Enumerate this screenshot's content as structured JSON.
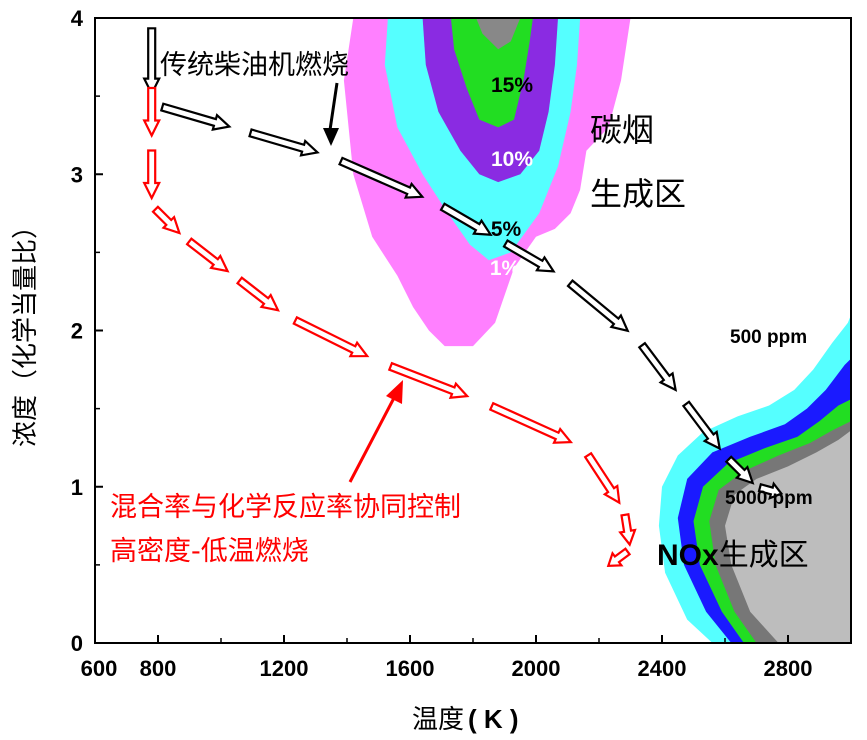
{
  "chart_data": {
    "type": "contour",
    "xlabel": "温度",
    "xlabel_unit": "( K )",
    "ylabel": "浓度（化学当量比）",
    "xlim": [
      600,
      3000
    ],
    "ylim": [
      0,
      4
    ],
    "x_ticks": [
      600,
      800,
      1200,
      1600,
      2000,
      2400,
      2800
    ],
    "y_ticks": [
      0,
      1,
      2,
      3,
      4
    ],
    "regions": {
      "soot": {
        "title_line1": "碳烟",
        "title_line2": "生成区",
        "levels": [
          {
            "label": "1%",
            "color": "#ff80ff",
            "polygon": [
              [
                1420,
                4
              ],
              [
                1390,
                3.6
              ],
              [
                1420,
                3.0
              ],
              [
                1480,
                2.6
              ],
              [
                1560,
                2.35
              ],
              [
                1610,
                2.15
              ],
              [
                1660,
                2.0
              ],
              [
                1710,
                1.9
              ],
              [
                1800,
                1.9
              ],
              [
                1870,
                2.05
              ],
              [
                1930,
                2.4
              ],
              [
                2000,
                2.6
              ],
              [
                2060,
                2.65
              ],
              [
                2110,
                2.75
              ],
              [
                2140,
                2.9
              ],
              [
                2160,
                3.15
              ],
              [
                2230,
                3.3
              ],
              [
                2270,
                3.6
              ],
              [
                2300,
                4
              ]
            ]
          },
          {
            "label": "5%",
            "color": "#55ffff",
            "polygon": [
              [
                1530,
                4
              ],
              [
                1520,
                3.7
              ],
              [
                1560,
                3.3
              ],
              [
                1640,
                3.0
              ],
              [
                1720,
                2.75
              ],
              [
                1790,
                2.55
              ],
              [
                1850,
                2.45
              ],
              [
                1920,
                2.5
              ],
              [
                2010,
                2.75
              ],
              [
                2070,
                3.05
              ],
              [
                2110,
                3.4
              ],
              [
                2130,
                3.7
              ],
              [
                2140,
                4
              ]
            ]
          },
          {
            "label": "10%",
            "color": "#8a2be2",
            "polygon": [
              [
                1640,
                4
              ],
              [
                1650,
                3.7
              ],
              [
                1690,
                3.4
              ],
              [
                1760,
                3.15
              ],
              [
                1820,
                3.0
              ],
              [
                1880,
                2.95
              ],
              [
                1950,
                3.0
              ],
              [
                2010,
                3.15
              ],
              [
                2040,
                3.4
              ],
              [
                2060,
                3.7
              ],
              [
                2070,
                4
              ]
            ]
          },
          {
            "label": "15%",
            "color": "#22dd22",
            "polygon": [
              [
                1730,
                4
              ],
              [
                1740,
                3.8
              ],
              [
                1780,
                3.55
              ],
              [
                1820,
                3.35
              ],
              [
                1880,
                3.3
              ],
              [
                1930,
                3.35
              ],
              [
                1960,
                3.6
              ],
              [
                1980,
                3.85
              ],
              [
                1990,
                4
              ]
            ]
          },
          {
            "label": "",
            "color": "#888888",
            "polygon": [
              [
                1810,
                4
              ],
              [
                1830,
                3.9
              ],
              [
                1880,
                3.8
              ],
              [
                1920,
                3.85
              ],
              [
                1940,
                3.95
              ],
              [
                1950,
                4
              ]
            ]
          }
        ]
      },
      "nox": {
        "title": "NOx生成区",
        "title_en": "NOx",
        "title_cn": "生成区",
        "label_low": "500 ppm",
        "label_high": "5000 ppm",
        "levels": [
          {
            "color": "#55ffff",
            "polygon": [
              [
                2560,
                0
              ],
              [
                2480,
                0.15
              ],
              [
                2410,
                0.45
              ],
              [
                2390,
                0.75
              ],
              [
                2400,
                1.0
              ],
              [
                2450,
                1.2
              ],
              [
                2530,
                1.35
              ],
              [
                2640,
                1.45
              ],
              [
                2740,
                1.52
              ],
              [
                2820,
                1.62
              ],
              [
                2880,
                1.75
              ],
              [
                2940,
                1.92
              ],
              [
                2990,
                2.05
              ],
              [
                3000,
                2.1
              ],
              [
                3000,
                0
              ]
            ]
          },
          {
            "color": "#1a1aff",
            "polygon": [
              [
                2620,
                0
              ],
              [
                2540,
                0.2
              ],
              [
                2470,
                0.5
              ],
              [
                2450,
                0.8
              ],
              [
                2480,
                1.05
              ],
              [
                2560,
                1.22
              ],
              [
                2680,
                1.32
              ],
              [
                2790,
                1.4
              ],
              [
                2860,
                1.5
              ],
              [
                2920,
                1.62
              ],
              [
                2980,
                1.78
              ],
              [
                3000,
                1.82
              ],
              [
                3000,
                0
              ]
            ]
          },
          {
            "color": "#22dd22",
            "polygon": [
              [
                2660,
                0
              ],
              [
                2590,
                0.2
              ],
              [
                2520,
                0.5
              ],
              [
                2500,
                0.78
              ],
              [
                2530,
                1.0
              ],
              [
                2610,
                1.15
              ],
              [
                2730,
                1.25
              ],
              [
                2830,
                1.32
              ],
              [
                2900,
                1.42
              ],
              [
                2960,
                1.52
              ],
              [
                3000,
                1.56
              ],
              [
                3000,
                0
              ]
            ]
          },
          {
            "color": "#777777",
            "polygon": [
              [
                2700,
                0
              ],
              [
                2630,
                0.2
              ],
              [
                2570,
                0.5
              ],
              [
                2550,
                0.78
              ],
              [
                2580,
                0.98
              ],
              [
                2660,
                1.1
              ],
              [
                2770,
                1.2
              ],
              [
                2870,
                1.28
              ],
              [
                2940,
                1.36
              ],
              [
                3000,
                1.42
              ],
              [
                3000,
                0
              ]
            ]
          },
          {
            "color": "#bdbdbd",
            "polygon": [
              [
                2770,
                0
              ],
              [
                2680,
                0.2
              ],
              [
                2620,
                0.5
              ],
              [
                2600,
                0.75
              ],
              [
                2630,
                0.95
              ],
              [
                2700,
                1.05
              ],
              [
                2800,
                1.13
              ],
              [
                2890,
                1.22
              ],
              [
                2960,
                1.3
              ],
              [
                3000,
                1.36
              ],
              [
                3000,
                0
              ]
            ]
          }
        ]
      }
    },
    "paths": [
      {
        "name": "传统柴油机燃烧",
        "color": "#000000",
        "points": [
          [
            780,
            4
          ],
          [
            780,
            3.45
          ],
          [
            1340,
            3.12
          ],
          [
            1680,
            2.82
          ],
          [
            2080,
            2.35
          ],
          [
            2320,
            1.95
          ],
          [
            2600,
            1.2
          ],
          [
            2700,
            1.0
          ],
          [
            2790,
            0.95
          ]
        ]
      },
      {
        "name": "高密度-低温燃烧",
        "color": "#ff0000",
        "points": [
          [
            780,
            3.6
          ],
          [
            780,
            2.8
          ],
          [
            880,
            2.6
          ],
          [
            1200,
            2.1
          ],
          [
            1500,
            1.8
          ],
          [
            1820,
            1.55
          ],
          [
            2150,
            1.25
          ],
          [
            2280,
            0.85
          ],
          [
            2300,
            0.6
          ],
          [
            2220,
            0.48
          ]
        ]
      }
    ],
    "annotations": {
      "conventional": "传统柴油机燃烧",
      "ltc_line1": "混合率与化学反应率协同控制",
      "ltc_line2": "高密度-低温燃烧"
    }
  }
}
